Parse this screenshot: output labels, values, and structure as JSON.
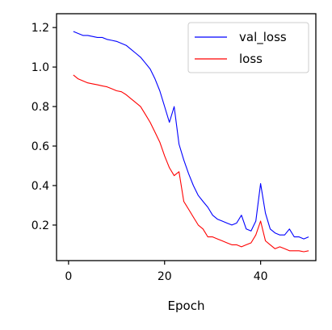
{
  "chart_data": {
    "type": "line",
    "title": "",
    "xlabel": "Epoch",
    "ylabel": "",
    "xlim": [
      -2.5,
      51.5
    ],
    "ylim": [
      0.02,
      1.27
    ],
    "xticks": [
      0,
      20,
      40
    ],
    "yticks": [
      0.2,
      0.4,
      0.6,
      0.8,
      1.0,
      1.2
    ],
    "ytick_labels": [
      "0.2",
      "0.4",
      "0.6",
      "0.8",
      "1.0",
      "1.2"
    ],
    "grid": false,
    "legend_position": "top-right",
    "x": [
      1,
      2,
      3,
      4,
      5,
      6,
      7,
      8,
      9,
      10,
      11,
      12,
      13,
      14,
      15,
      16,
      17,
      18,
      19,
      20,
      21,
      22,
      23,
      24,
      25,
      26,
      27,
      28,
      29,
      30,
      31,
      32,
      33,
      34,
      35,
      36,
      37,
      38,
      39,
      40,
      41,
      42,
      43,
      44,
      45,
      46,
      47,
      48,
      49,
      50
    ],
    "series": [
      {
        "name": "val_loss",
        "color": "#0000ff",
        "values": [
          1.18,
          1.17,
          1.16,
          1.16,
          1.155,
          1.15,
          1.15,
          1.14,
          1.135,
          1.13,
          1.12,
          1.11,
          1.09,
          1.07,
          1.05,
          1.02,
          0.99,
          0.94,
          0.88,
          0.8,
          0.72,
          0.8,
          0.61,
          0.53,
          0.46,
          0.4,
          0.35,
          0.32,
          0.29,
          0.25,
          0.23,
          0.22,
          0.21,
          0.2,
          0.21,
          0.25,
          0.18,
          0.17,
          0.22,
          0.41,
          0.26,
          0.18,
          0.16,
          0.15,
          0.15,
          0.18,
          0.14,
          0.14,
          0.13,
          0.14
        ]
      },
      {
        "name": "loss",
        "color": "#ff0000",
        "values": [
          0.96,
          0.94,
          0.93,
          0.92,
          0.915,
          0.91,
          0.905,
          0.9,
          0.89,
          0.88,
          0.875,
          0.86,
          0.84,
          0.82,
          0.8,
          0.76,
          0.72,
          0.67,
          0.62,
          0.55,
          0.49,
          0.45,
          0.47,
          0.32,
          0.28,
          0.24,
          0.2,
          0.18,
          0.14,
          0.14,
          0.13,
          0.12,
          0.11,
          0.1,
          0.1,
          0.09,
          0.1,
          0.11,
          0.15,
          0.22,
          0.12,
          0.1,
          0.08,
          0.09,
          0.08,
          0.07,
          0.07,
          0.07,
          0.065,
          0.07
        ]
      }
    ]
  }
}
